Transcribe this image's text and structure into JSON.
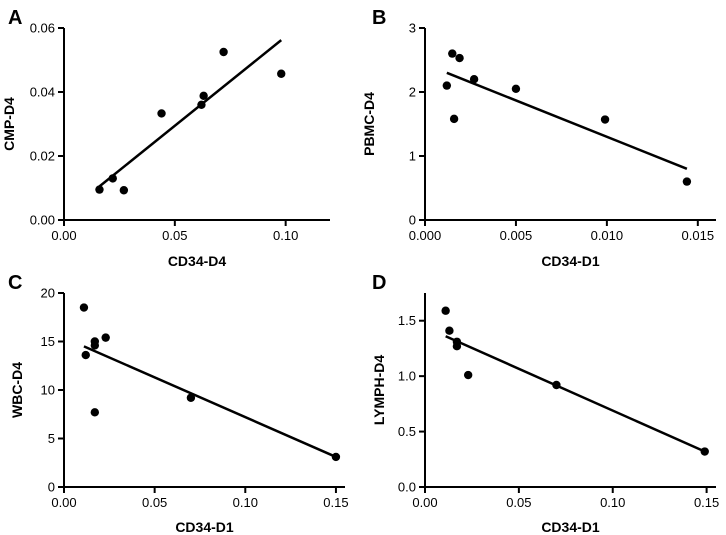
{
  "chart_data": [
    {
      "panel": "A",
      "type": "scatter",
      "xlabel": "CD34-D4",
      "ylabel": "CMP-D4",
      "xlim": [
        0,
        0.12
      ],
      "ylim": [
        0,
        0.06
      ],
      "xticks": [
        0,
        0.05,
        0.1
      ],
      "xtick_labels": [
        "0.00",
        "0.05",
        "0.10"
      ],
      "yticks": [
        0,
        0.02,
        0.04,
        0.06
      ],
      "ytick_labels": [
        "0.00",
        "0.02",
        "0.04",
        "0.06"
      ],
      "points": [
        [
          0.016,
          0.0095
        ],
        [
          0.022,
          0.013
        ],
        [
          0.027,
          0.0093
        ],
        [
          0.044,
          0.0333
        ],
        [
          0.062,
          0.036
        ],
        [
          0.063,
          0.0388
        ],
        [
          0.072,
          0.0525
        ],
        [
          0.098,
          0.0457
        ]
      ],
      "fit_line": [
        [
          0.016,
          0.0105
        ],
        [
          0.098,
          0.0562
        ]
      ]
    },
    {
      "panel": "B",
      "type": "scatter",
      "xlabel": "CD34-D1",
      "ylabel": "PBMC-D4",
      "xlim": [
        0,
        0.016
      ],
      "ylim": [
        0,
        3
      ],
      "xticks": [
        0,
        0.005,
        0.01,
        0.015
      ],
      "xtick_labels": [
        "0.000",
        "0.005",
        "0.010",
        "0.015"
      ],
      "yticks": [
        0,
        1,
        2,
        3
      ],
      "ytick_labels": [
        "0",
        "1",
        "2",
        "3"
      ],
      "points": [
        [
          0.0012,
          2.1
        ],
        [
          0.0015,
          2.6
        ],
        [
          0.0016,
          1.58
        ],
        [
          0.0019,
          2.53
        ],
        [
          0.0027,
          2.2
        ],
        [
          0.005,
          2.05
        ],
        [
          0.0099,
          1.57
        ],
        [
          0.0144,
          0.6
        ]
      ],
      "fit_line": [
        [
          0.0012,
          2.3
        ],
        [
          0.0144,
          0.8
        ]
      ]
    },
    {
      "panel": "C",
      "type": "scatter",
      "xlabel": "CD34-D1",
      "ylabel": "WBC-D4",
      "xlim": [
        0,
        0.155
      ],
      "ylim": [
        0,
        20
      ],
      "xticks": [
        0,
        0.05,
        0.1,
        0.15
      ],
      "xtick_labels": [
        "0.00",
        "0.05",
        "0.10",
        "0.15"
      ],
      "yticks": [
        0,
        5,
        10,
        15,
        20
      ],
      "ytick_labels": [
        "0",
        "5",
        "10",
        "15",
        "20"
      ],
      "points": [
        [
          0.011,
          18.5
        ],
        [
          0.012,
          13.6
        ],
        [
          0.017,
          14.6
        ],
        [
          0.017,
          7.7
        ],
        [
          0.017,
          15.0
        ],
        [
          0.023,
          15.4
        ],
        [
          0.07,
          9.2
        ],
        [
          0.15,
          3.1
        ]
      ],
      "fit_line": [
        [
          0.011,
          14.5
        ],
        [
          0.15,
          3.1
        ]
      ]
    },
    {
      "panel": "D",
      "type": "scatter",
      "xlabel": "CD34-D1",
      "ylabel": "LYMPH-D4",
      "xlim": [
        0,
        0.155
      ],
      "ylim": [
        0,
        1.75
      ],
      "xticks": [
        0,
        0.05,
        0.1,
        0.15
      ],
      "xtick_labels": [
        "0.00",
        "0.05",
        "0.10",
        "0.15"
      ],
      "yticks": [
        0,
        0.5,
        1.0,
        1.5
      ],
      "ytick_labels": [
        "0.0",
        "0.5",
        "1.0",
        "1.5"
      ],
      "points": [
        [
          0.011,
          1.59
        ],
        [
          0.013,
          1.41
        ],
        [
          0.017,
          1.31
        ],
        [
          0.017,
          1.27
        ],
        [
          0.023,
          1.01
        ],
        [
          0.07,
          0.92
        ],
        [
          0.149,
          0.32
        ]
      ],
      "fit_line": [
        [
          0.011,
          1.36
        ],
        [
          0.149,
          0.32
        ]
      ]
    }
  ]
}
